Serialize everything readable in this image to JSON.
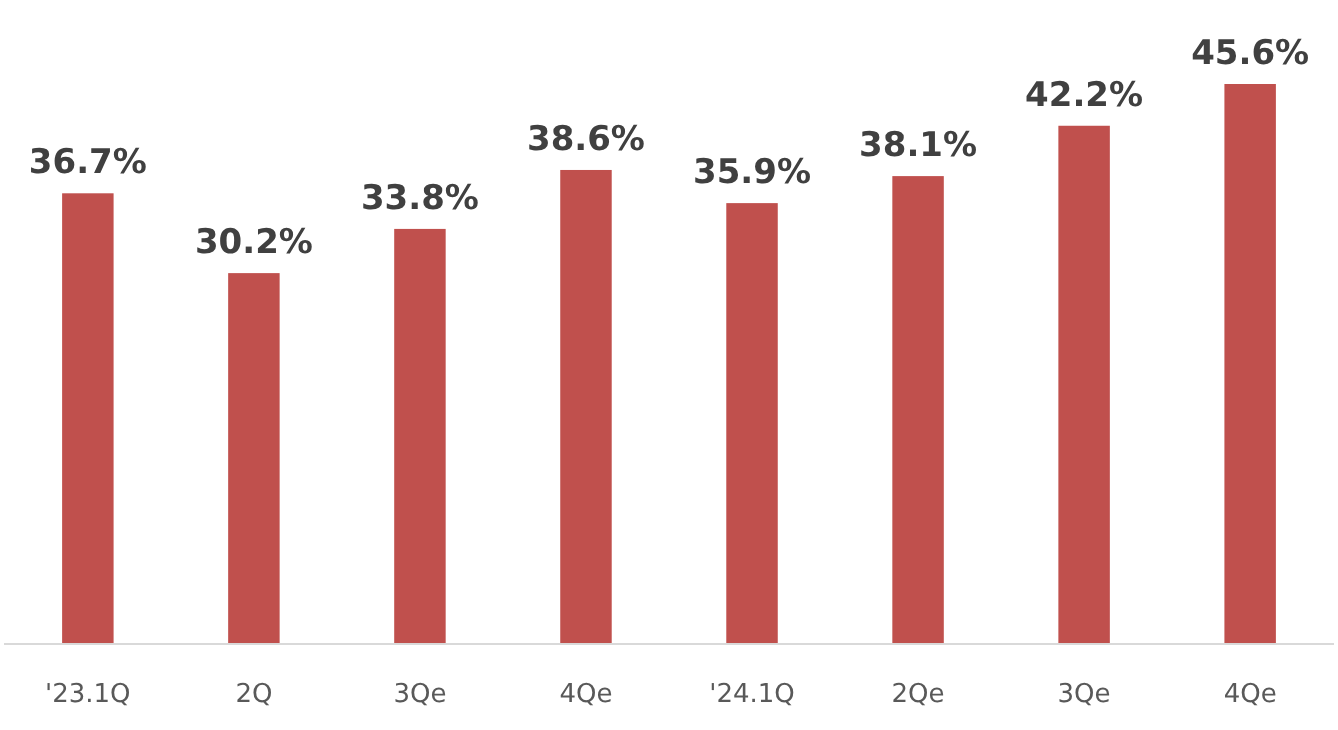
{
  "chart_data": {
    "type": "bar",
    "categories": [
      "'23.1Q",
      "2Q",
      "3Qe",
      "4Qe",
      "'24.1Q",
      "2Qe",
      "3Qe",
      "4Qe"
    ],
    "values": [
      36.7,
      30.2,
      33.8,
      38.6,
      35.9,
      38.1,
      42.2,
      45.6
    ],
    "value_labels": [
      "36.7%",
      "30.2%",
      "33.8%",
      "38.6%",
      "35.9%",
      "38.1%",
      "42.2%",
      "45.6%"
    ],
    "color": "#c0504d"
  }
}
